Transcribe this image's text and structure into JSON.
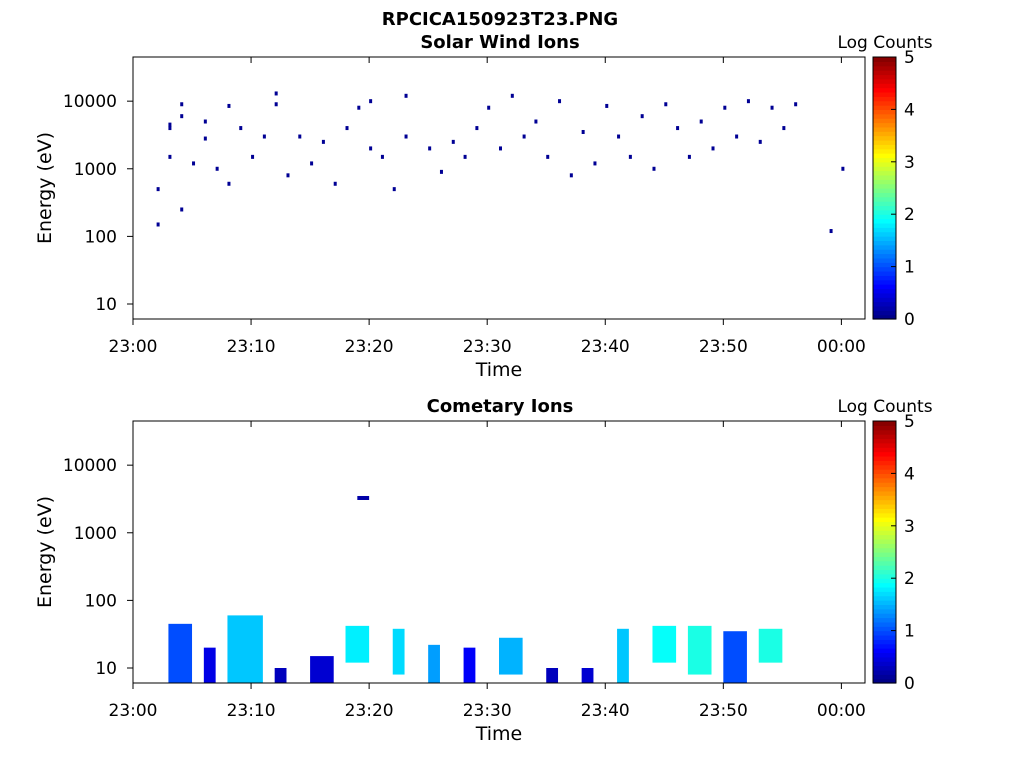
{
  "figure": {
    "title": "RPCICA150923T23.PNG"
  },
  "chart_data": [
    {
      "type": "heatmap",
      "title": "Solar Wind Ions",
      "xlabel": "Time",
      "ylabel": "Energy (eV)",
      "x_ticks": [
        "23:00",
        "23:10",
        "23:20",
        "23:30",
        "23:40",
        "23:50",
        "00:00"
      ],
      "x_range": [
        "23:00",
        "00:02"
      ],
      "y_scale": "log",
      "y_ticks": [
        "10",
        "100",
        "1000",
        "10000"
      ],
      "y_range": [
        6,
        45000
      ],
      "grid": false,
      "colorbar": {
        "label": "Log Counts",
        "ticks": [
          "0",
          "1",
          "2",
          "3",
          "4",
          "5"
        ],
        "range": [
          0,
          5
        ],
        "colormap": "jet"
      },
      "description_level": 0.1,
      "cells": [
        [
          "23:02",
          150,
          0.1
        ],
        [
          "23:02",
          500,
          0.1
        ],
        [
          "23:03",
          4500,
          0.1
        ],
        [
          "23:03",
          4000,
          0.1
        ],
        [
          "23:04",
          6000,
          0.1
        ],
        [
          "23:04",
          9000,
          0.1
        ],
        [
          "23:03",
          1500,
          0.1
        ],
        [
          "23:04",
          250,
          0.1
        ],
        [
          "23:05",
          1200,
          0.1
        ],
        [
          "23:06",
          5000,
          0.1
        ],
        [
          "23:06",
          2800,
          0.1
        ],
        [
          "23:07",
          1000,
          0.1
        ],
        [
          "23:08",
          600,
          0.1
        ],
        [
          "23:08",
          8500,
          0.1
        ],
        [
          "23:09",
          4000,
          0.1
        ],
        [
          "23:10",
          1500,
          0.1
        ],
        [
          "23:11",
          3000,
          0.1
        ],
        [
          "23:12",
          13000,
          0.1
        ],
        [
          "23:12",
          9000,
          0.1
        ],
        [
          "23:13",
          800,
          0.1
        ],
        [
          "23:14",
          3000,
          0.1
        ],
        [
          "23:15",
          1200,
          0.1
        ],
        [
          "23:16",
          2500,
          0.1
        ],
        [
          "23:17",
          600,
          0.1
        ],
        [
          "23:18",
          4000,
          0.1
        ],
        [
          "23:19",
          8000,
          0.1
        ],
        [
          "23:20",
          10000,
          0.1
        ],
        [
          "23:20",
          2000,
          0.1
        ],
        [
          "23:21",
          1500,
          0.1
        ],
        [
          "23:22",
          500,
          0.1
        ],
        [
          "23:23",
          12000,
          0.1
        ],
        [
          "23:23",
          3000,
          0.1
        ],
        [
          "23:25",
          2000,
          0.1
        ],
        [
          "23:26",
          900,
          0.1
        ],
        [
          "23:27",
          2500,
          0.1
        ],
        [
          "23:28",
          1500,
          0.1
        ],
        [
          "23:29",
          4000,
          0.1
        ],
        [
          "23:30",
          8000,
          0.1
        ],
        [
          "23:31",
          2000,
          0.1
        ],
        [
          "23:32",
          12000,
          0.1
        ],
        [
          "23:33",
          3000,
          0.1
        ],
        [
          "23:34",
          5000,
          0.1
        ],
        [
          "23:35",
          1500,
          0.1
        ],
        [
          "23:36",
          10000,
          0.1
        ],
        [
          "23:37",
          800,
          0.1
        ],
        [
          "23:38",
          3500,
          0.1
        ],
        [
          "23:39",
          1200,
          0.1
        ],
        [
          "23:40",
          8500,
          0.1
        ],
        [
          "23:41",
          3000,
          0.1
        ],
        [
          "23:42",
          1500,
          0.1
        ],
        [
          "23:43",
          6000,
          0.1
        ],
        [
          "23:44",
          1000,
          0.1
        ],
        [
          "23:45",
          9000,
          0.1
        ],
        [
          "23:46",
          4000,
          0.1
        ],
        [
          "23:47",
          1500,
          0.1
        ],
        [
          "23:48",
          5000,
          0.1
        ],
        [
          "23:49",
          2000,
          0.1
        ],
        [
          "23:50",
          8000,
          0.1
        ],
        [
          "23:51",
          3000,
          0.1
        ],
        [
          "23:52",
          10000,
          0.1
        ],
        [
          "23:53",
          2500,
          0.1
        ],
        [
          "23:54",
          8000,
          0.1
        ],
        [
          "23:55",
          4000,
          0.1
        ],
        [
          "23:56",
          9000,
          0.1
        ],
        [
          "23:59",
          120,
          0.1
        ],
        [
          "00:00",
          1000,
          0.1
        ]
      ]
    },
    {
      "type": "heatmap",
      "title": "Cometary Ions",
      "xlabel": "Time",
      "ylabel": "Energy (eV)",
      "x_ticks": [
        "23:00",
        "23:10",
        "23:20",
        "23:30",
        "23:40",
        "23:50",
        "00:00"
      ],
      "x_range": [
        "23:00",
        "00:02"
      ],
      "y_scale": "log",
      "y_ticks": [
        "10",
        "100",
        "1000",
        "10000"
      ],
      "y_range": [
        6,
        45000
      ],
      "grid": false,
      "colorbar": {
        "label": "Log Counts",
        "ticks": [
          "0",
          "1",
          "2",
          "3",
          "4",
          "5"
        ],
        "range": [
          0,
          5
        ],
        "colormap": "jet"
      },
      "bursts": [
        {
          "start": "23:03",
          "end": "23:05",
          "emin": 6,
          "emax": 45,
          "level": 1.0
        },
        {
          "start": "23:06",
          "end": "23:07",
          "emin": 6,
          "emax": 20,
          "level": 0.5
        },
        {
          "start": "23:08",
          "end": "23:11",
          "emin": 6,
          "emax": 60,
          "level": 1.6
        },
        {
          "start": "23:12",
          "end": "23:13",
          "emin": 6,
          "emax": 10,
          "level": 0.3
        },
        {
          "start": "23:15",
          "end": "23:17",
          "emin": 6,
          "emax": 15,
          "level": 0.4
        },
        {
          "start": "23:18",
          "end": "23:20",
          "emin": 12,
          "emax": 42,
          "level": 1.8
        },
        {
          "start": "23:19",
          "end": "23:20",
          "emin": 3500,
          "emax": 3500,
          "level": 0.2
        },
        {
          "start": "23:22",
          "end": "23:23",
          "emin": 8,
          "emax": 38,
          "level": 1.7
        },
        {
          "start": "23:25",
          "end": "23:26",
          "emin": 6,
          "emax": 22,
          "level": 1.4
        },
        {
          "start": "23:28",
          "end": "23:29",
          "emin": 6,
          "emax": 20,
          "level": 0.6
        },
        {
          "start": "23:31",
          "end": "23:33",
          "emin": 8,
          "emax": 28,
          "level": 1.5
        },
        {
          "start": "23:35",
          "end": "23:36",
          "emin": 6,
          "emax": 10,
          "level": 0.3
        },
        {
          "start": "23:38",
          "end": "23:39",
          "emin": 6,
          "emax": 10,
          "level": 0.4
        },
        {
          "start": "23:41",
          "end": "23:42",
          "emin": 6,
          "emax": 38,
          "level": 1.6
        },
        {
          "start": "23:44",
          "end": "23:46",
          "emin": 12,
          "emax": 42,
          "level": 1.9
        },
        {
          "start": "23:47",
          "end": "23:49",
          "emin": 8,
          "emax": 42,
          "level": 2.0
        },
        {
          "start": "23:50",
          "end": "23:52",
          "emin": 6,
          "emax": 35,
          "level": 1.0
        },
        {
          "start": "23:53",
          "end": "23:55",
          "emin": 12,
          "emax": 38,
          "level": 2.0
        }
      ]
    }
  ]
}
